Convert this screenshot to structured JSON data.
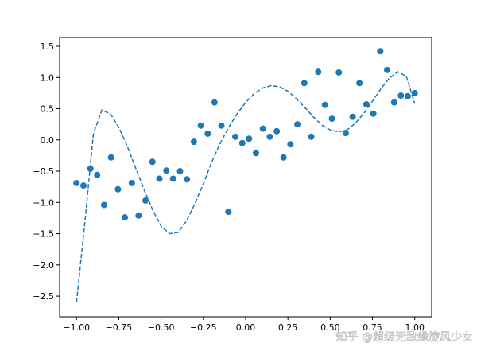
{
  "chart_data": {
    "type": "scatter",
    "xlim": [
      -1.1,
      1.1
    ],
    "ylim": [
      -2.83,
      1.64
    ],
    "xticks": [
      {
        "value": -1,
        "label": "−1.00"
      },
      {
        "value": -0.75,
        "label": "−0.75"
      },
      {
        "value": -0.5,
        "label": "−0.50"
      },
      {
        "value": -0.25,
        "label": "−0.25"
      },
      {
        "value": 0,
        "label": "0.00"
      },
      {
        "value": 0.25,
        "label": "0.25"
      },
      {
        "value": 0.5,
        "label": "0.50"
      },
      {
        "value": 0.75,
        "label": "0.75"
      },
      {
        "value": 1,
        "label": "1.00"
      }
    ],
    "yticks": [
      {
        "value": -2.5,
        "label": "−2.5"
      },
      {
        "value": -2,
        "label": "−2.0"
      },
      {
        "value": -1.5,
        "label": "−1.5"
      },
      {
        "value": -1,
        "label": "−1.0"
      },
      {
        "value": -0.5,
        "label": "−0.5"
      },
      {
        "value": 0,
        "label": "0.0"
      },
      {
        "value": 0.5,
        "label": "0.5"
      },
      {
        "value": 1,
        "label": "1.0"
      },
      {
        "value": 1.5,
        "label": "1.5"
      }
    ],
    "series": [
      {
        "kind": "scatter",
        "color": "#1f77b4",
        "x": [
          -1.0,
          -0.959,
          -0.918,
          -0.878,
          -0.837,
          -0.796,
          -0.755,
          -0.714,
          -0.673,
          -0.633,
          -0.592,
          -0.551,
          -0.51,
          -0.469,
          -0.429,
          -0.388,
          -0.347,
          -0.306,
          -0.265,
          -0.224,
          -0.184,
          -0.143,
          -0.102,
          -0.061,
          -0.02,
          0.02,
          0.061,
          0.102,
          0.143,
          0.184,
          0.224,
          0.265,
          0.306,
          0.347,
          0.388,
          0.429,
          0.469,
          0.51,
          0.551,
          0.592,
          0.633,
          0.673,
          0.714,
          0.755,
          0.796,
          0.837,
          0.878,
          0.918,
          0.959,
          1.0
        ],
        "values": [
          -0.69,
          -0.73,
          -0.46,
          -0.56,
          -1.04,
          -0.28,
          -0.79,
          -1.24,
          -0.69,
          -1.21,
          -0.97,
          -0.35,
          -0.62,
          -0.49,
          -0.62,
          -0.5,
          -0.63,
          -0.03,
          0.23,
          0.1,
          0.6,
          0.23,
          -1.15,
          0.05,
          -0.05,
          0.02,
          -0.21,
          0.18,
          0.05,
          0.14,
          -0.28,
          -0.07,
          0.25,
          0.91,
          0.05,
          1.09,
          0.56,
          0.34,
          1.08,
          0.11,
          0.37,
          0.91,
          0.57,
          0.42,
          1.42,
          1.12,
          0.6,
          0.71,
          0.7,
          0.75
        ]
      },
      {
        "kind": "line",
        "linestyle": "dashed",
        "color": "#1f77b4",
        "x": [
          -1.0,
          -0.95,
          -0.9,
          -0.85,
          -0.8,
          -0.75,
          -0.7,
          -0.65,
          -0.6,
          -0.55,
          -0.5,
          -0.45,
          -0.4,
          -0.35,
          -0.3,
          -0.25,
          -0.2,
          -0.15,
          -0.1,
          -0.05,
          0.0,
          0.05,
          0.1,
          0.15,
          0.2,
          0.25,
          0.3,
          0.35,
          0.4,
          0.45,
          0.5,
          0.55,
          0.6,
          0.65,
          0.7,
          0.75,
          0.8,
          0.85,
          0.9,
          0.95,
          1.0
        ],
        "values": [
          -2.6,
          -1.3,
          0.1,
          0.48,
          0.42,
          0.2,
          -0.1,
          -0.45,
          -0.8,
          -1.12,
          -1.38,
          -1.5,
          -1.48,
          -1.3,
          -1.02,
          -0.7,
          -0.35,
          -0.05,
          0.2,
          0.42,
          0.6,
          0.74,
          0.83,
          0.87,
          0.85,
          0.78,
          0.66,
          0.52,
          0.37,
          0.24,
          0.16,
          0.13,
          0.16,
          0.27,
          0.43,
          0.62,
          0.82,
          0.99,
          1.09,
          1.02,
          0.58
        ]
      }
    ],
    "watermark": "知乎 @超级无敌缘旋风少女"
  }
}
